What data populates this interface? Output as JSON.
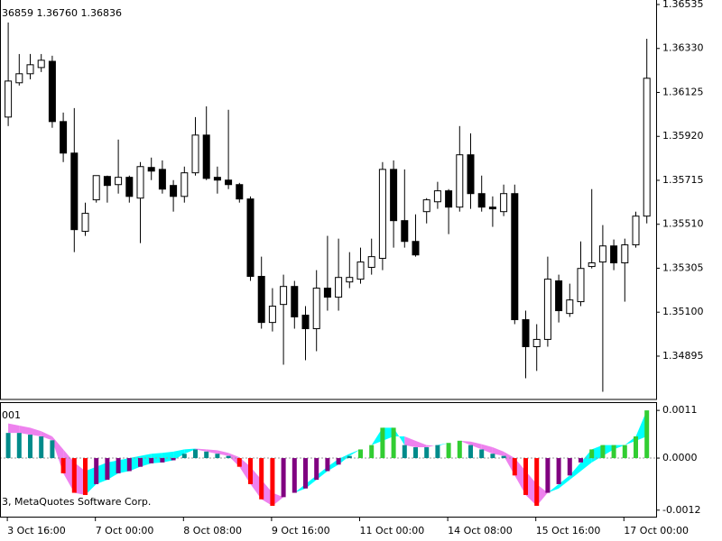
{
  "chart_data": [
    {
      "type": "candlestick",
      "title": "36859 1.36760 1.36836",
      "categories": [
        "3 Oct 16:00",
        null,
        null,
        null,
        null,
        null,
        null,
        null,
        "7 Oct 00:00",
        null,
        null,
        null,
        null,
        null,
        null,
        null,
        "8 Oct 08:00",
        null,
        null,
        null,
        null,
        null,
        null,
        null,
        "9 Oct 16:00",
        null,
        null,
        null,
        null,
        null,
        null,
        null,
        "11 Oct 00:00",
        null,
        null,
        null,
        null,
        null,
        null,
        null,
        "14 Oct 08:00",
        null,
        null,
        null,
        null,
        null,
        null,
        null,
        "15 Oct 16:00",
        null,
        null,
        null,
        null,
        null,
        null,
        null,
        "17 Oct 00:00",
        null,
        null
      ],
      "open": [
        1.3601,
        1.3617,
        1.36212,
        1.36241,
        1.3627,
        1.35989,
        1.35842,
        1.35477,
        1.35624,
        1.35733,
        1.35695,
        1.35729,
        1.35632,
        1.35775,
        1.35766,
        1.35691,
        1.3564,
        1.3575,
        1.35926,
        1.35729,
        1.35716,
        1.35695,
        1.35628,
        1.35267,
        1.35052,
        1.35136,
        1.3522,
        1.35086,
        1.35023,
        1.35212,
        1.3517,
        1.35241,
        1.35254,
        1.35309,
        1.35351,
        1.35766,
        1.35527,
        1.3543,
        1.35569,
        1.35615,
        1.35666,
        1.3559,
        1.35834,
        1.35653,
        1.3559,
        1.35569,
        1.35653,
        1.35065,
        1.34939,
        1.34973,
        1.35246,
        1.35094,
        1.35149,
        1.35313,
        1.35334,
        1.35409,
        1.3533,
        1.35414,
        1.35548
      ],
      "high": [
        1.36451,
        1.36304,
        1.36304,
        1.36304,
        1.36296,
        1.36031,
        1.36052,
        1.35611,
        1.35737,
        1.35737,
        1.35905,
        1.35737,
        1.358,
        1.35821,
        1.35808,
        1.35716,
        1.35779,
        1.3601,
        1.3606,
        1.35779,
        1.36044,
        1.35703,
        1.3564,
        1.35359,
        1.35212,
        1.35275,
        1.35246,
        1.35128,
        1.35296,
        1.35456,
        1.35443,
        1.3538,
        1.35401,
        1.35443,
        1.358,
        1.35808,
        1.35766,
        1.35556,
        1.35632,
        1.35708,
        1.35674,
        1.35968,
        1.35934,
        1.35737,
        1.3564,
        1.35695,
        1.35695,
        1.35107,
        1.35044,
        1.35359,
        1.35275,
        1.35233,
        1.3543,
        1.35674,
        1.35506,
        1.35439,
        1.35443,
        1.35569,
        1.36375
      ],
      "low": [
        1.35968,
        1.36157,
        1.36186,
        1.3622,
        1.3596,
        1.358,
        1.3538,
        1.35456,
        1.35611,
        1.35611,
        1.35653,
        1.35611,
        1.35422,
        1.35716,
        1.35653,
        1.35569,
        1.35611,
        1.35737,
        1.35716,
        1.35653,
        1.35674,
        1.35611,
        1.35246,
        1.35023,
        1.3501,
        1.34855,
        1.35023,
        1.34876,
        1.34918,
        1.35107,
        1.35107,
        1.35212,
        1.35233,
        1.35275,
        1.35296,
        1.35401,
        1.35401,
        1.35359,
        1.35514,
        1.35582,
        1.35464,
        1.35569,
        1.35582,
        1.35569,
        1.35498,
        1.35548,
        1.35044,
        1.34792,
        1.34826,
        1.34939,
        1.35052,
        1.35078,
        1.35128,
        1.35304,
        1.34729,
        1.35296,
        1.35149,
        1.35401,
        1.35514
      ],
      "close": [
        1.36178,
        1.36212,
        1.36254,
        1.36275,
        1.35989,
        1.35842,
        1.35485,
        1.35561,
        1.35737,
        1.35691,
        1.35729,
        1.3564,
        1.35779,
        1.35758,
        1.35674,
        1.3564,
        1.3575,
        1.35926,
        1.35724,
        1.35716,
        1.35695,
        1.35628,
        1.35267,
        1.35052,
        1.35128,
        1.3522,
        1.35078,
        1.35023,
        1.35212,
        1.3517,
        1.35262,
        1.35262,
        1.35334,
        1.35359,
        1.35766,
        1.35527,
        1.3543,
        1.35367,
        1.35624,
        1.35666,
        1.3559,
        1.35834,
        1.35653,
        1.3559,
        1.35582,
        1.35653,
        1.35065,
        1.34939,
        1.34973,
        1.35254,
        1.35107,
        1.35157,
        1.35304,
        1.3533,
        1.35409,
        1.3533,
        1.35414,
        1.35548,
        1.36191
      ],
      "up_color": "#ffffff",
      "down_color": "#000000",
      "ylim": [
        1.34693,
        1.36556
      ],
      "yticks": [
        1.36535,
        {
          "value": 1.3633,
          "label": "1.36330"
        },
        1.36125,
        {
          "value": 1.3592,
          "label": "1.35920"
        },
        1.35715,
        {
          "value": 1.3551,
          "label": "1.35510"
        },
        1.35305,
        {
          "value": 1.351,
          "label": "1.35100"
        },
        1.34895
      ]
    },
    {
      "type": "bar",
      "title": "001",
      "annotation": "3, MetaQuotes Software Corp.",
      "values": [
        0.00058,
        0.00058,
        0.00054,
        0.0005,
        0.00041,
        -0.00035,
        -0.0008,
        -0.00085,
        -0.0006,
        -0.0005,
        -0.00035,
        -0.0003,
        -0.0002,
        -0.00012,
        -0.0001,
        -5e-05,
        0.0001,
        0.0002,
        0.00015,
        0.0001,
        5e-05,
        -0.0002,
        -0.0006,
        -0.00095,
        -0.0011,
        -0.0009,
        -0.0008,
        -0.0007,
        -0.0005,
        -0.0003,
        -0.00015,
        5e-05,
        0.0002,
        0.0003,
        0.0007,
        0.0007,
        0.0003,
        0.00025,
        0.00025,
        0.0003,
        0.00035,
        0.0004,
        0.0003,
        0.0002,
        0.0001,
        5e-05,
        -0.0004,
        -0.00085,
        -0.0011,
        -0.0008,
        -0.0006,
        -0.0004,
        -0.0001,
        0.0002,
        0.0003,
        0.0003,
        0.0003,
        0.0005,
        0.0011
      ],
      "colors": [
        "#008b8b",
        "#008b8b",
        "#008b8b",
        "#008b8b",
        "#008b8b",
        "#ff0000",
        "#ff0000",
        "#ff0000",
        "#800080",
        "#800080",
        "#800080",
        "#800080",
        "#800080",
        "#800080",
        "#800080",
        "#800080",
        "#008b8b",
        "#008b8b",
        "#008b8b",
        "#008b8b",
        "#008b8b",
        "#ff0000",
        "#ff0000",
        "#ff0000",
        "#ff0000",
        "#800080",
        "#800080",
        "#800080",
        "#800080",
        "#800080",
        "#800080",
        "#008b8b",
        "#32cd32",
        "#32cd32",
        "#32cd32",
        "#32cd32",
        "#008b8b",
        "#008b8b",
        "#008b8b",
        "#008b8b",
        "#32cd32",
        "#32cd32",
        "#008b8b",
        "#008b8b",
        "#008b8b",
        "#008b8b",
        "#ff0000",
        "#ff0000",
        "#ff0000",
        "#800080",
        "#800080",
        "#800080",
        "#800080",
        "#32cd32",
        "#32cd32",
        "#32cd32",
        "#32cd32",
        "#32cd32",
        "#32cd32"
      ],
      "signal": [
        0.0008,
        0.00075,
        0.0007,
        0.00062,
        0.0005,
        0.0002,
        -0.0001,
        -0.0003,
        -0.0002,
        -0.0001,
        -5e-05,
        0,
        5e-05,
        0.0001,
        0.00012,
        0.00015,
        0.0002,
        0.00022,
        0.0002,
        0.00018,
        0.00012,
        2e-05,
        -0.0002,
        -0.0005,
        -0.0008,
        -0.0009,
        -0.0008,
        -0.0006,
        -0.0004,
        -0.0002,
        -2e-05,
        0.0001,
        0.0002,
        0.0003,
        0.0004,
        0.0005,
        0.0005,
        0.0004,
        0.0003,
        0.00028,
        0.00035,
        0.0004,
        0.00038,
        0.00032,
        0.00025,
        0.00015,
        0,
        -0.0003,
        -0.0006,
        -0.0008,
        -0.0007,
        -0.0005,
        -0.0003,
        -0.0001,
        5e-05,
        0.0002,
        0.0003,
        0.0004,
        0.0005
      ],
      "signal_up_color": "#00ffff",
      "signal_down_color": "#ee82ee",
      "ylim": [
        -0.00135,
        0.00129
      ],
      "yticks": [
        0.0011,
        {
          "value": 0,
          "label": "0.0000"
        },
        -0.0012
      ]
    }
  ]
}
